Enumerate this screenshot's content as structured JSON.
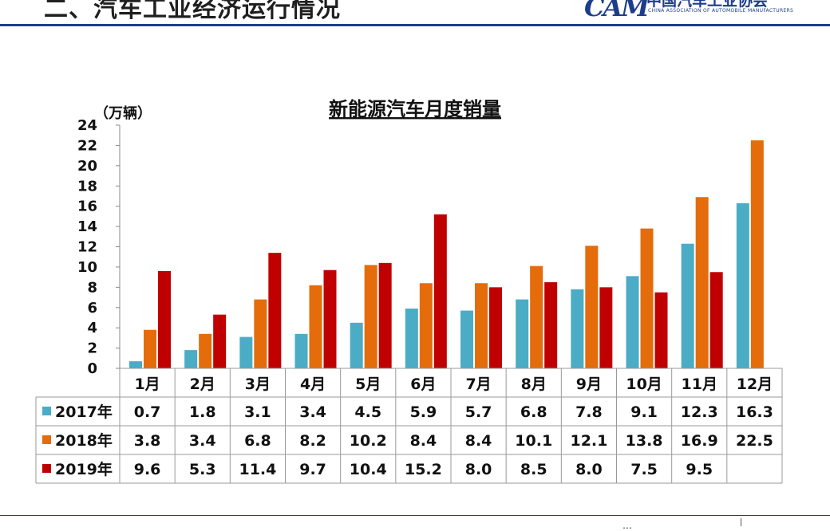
{
  "header": {
    "title": "二、汽车工业经济运行情况"
  },
  "logo": {
    "mark": "CAM",
    "name_cn": "中国汽车工业协会",
    "name_en": "CHINA ASSOCIATION OF AUTOMOBILE MANUFACTURERS"
  },
  "footer": {
    "text": "…"
  },
  "colors": {
    "2017": "#4bacc6",
    "2018": "#e46c0a",
    "2019": "#c00000",
    "brand": "#1d3d8c"
  },
  "chart_data": {
    "type": "bar",
    "title": "新能源汽车月度销量",
    "ylabel": "（万辆）",
    "xlabel": "",
    "ylim": [
      0,
      24
    ],
    "yticks": [
      0,
      2,
      4,
      6,
      8,
      10,
      12,
      14,
      16,
      18,
      20,
      22,
      24
    ],
    "grid": false,
    "legend": "data-table",
    "categories": [
      "1月",
      "2月",
      "3月",
      "4月",
      "5月",
      "6月",
      "7月",
      "8月",
      "9月",
      "10月",
      "11月",
      "12月"
    ],
    "series": [
      {
        "name": "2017年",
        "color": "#4bacc6",
        "values": [
          0.7,
          1.8,
          3.1,
          3.4,
          4.5,
          5.9,
          5.7,
          6.8,
          7.8,
          9.1,
          12.3,
          16.3
        ],
        "labels": [
          "0.7",
          "1.8",
          "3.1",
          "3.4",
          "4.5",
          "5.9",
          "5.7",
          "6.8",
          "7.8",
          "9.1",
          "12.3",
          "16.3"
        ]
      },
      {
        "name": "2018年",
        "color": "#e46c0a",
        "values": [
          3.8,
          3.4,
          6.8,
          8.2,
          10.2,
          8.4,
          8.4,
          10.1,
          12.1,
          13.8,
          16.9,
          22.5
        ],
        "labels": [
          "3.8",
          "3.4",
          "6.8",
          "8.2",
          "10.2",
          "8.4",
          "8.4",
          "10.1",
          "12.1",
          "13.8",
          "16.9",
          "22.5"
        ]
      },
      {
        "name": "2019年",
        "color": "#c00000",
        "values": [
          9.6,
          5.3,
          11.4,
          9.7,
          10.4,
          15.2,
          8.0,
          8.5,
          8.0,
          7.5,
          9.5,
          null
        ],
        "labels": [
          "9.6",
          "5.3",
          "11.4",
          "9.7",
          "10.4",
          "15.2",
          "8.0",
          "8.5",
          "8.0",
          "7.5",
          "9.5",
          ""
        ]
      }
    ]
  }
}
